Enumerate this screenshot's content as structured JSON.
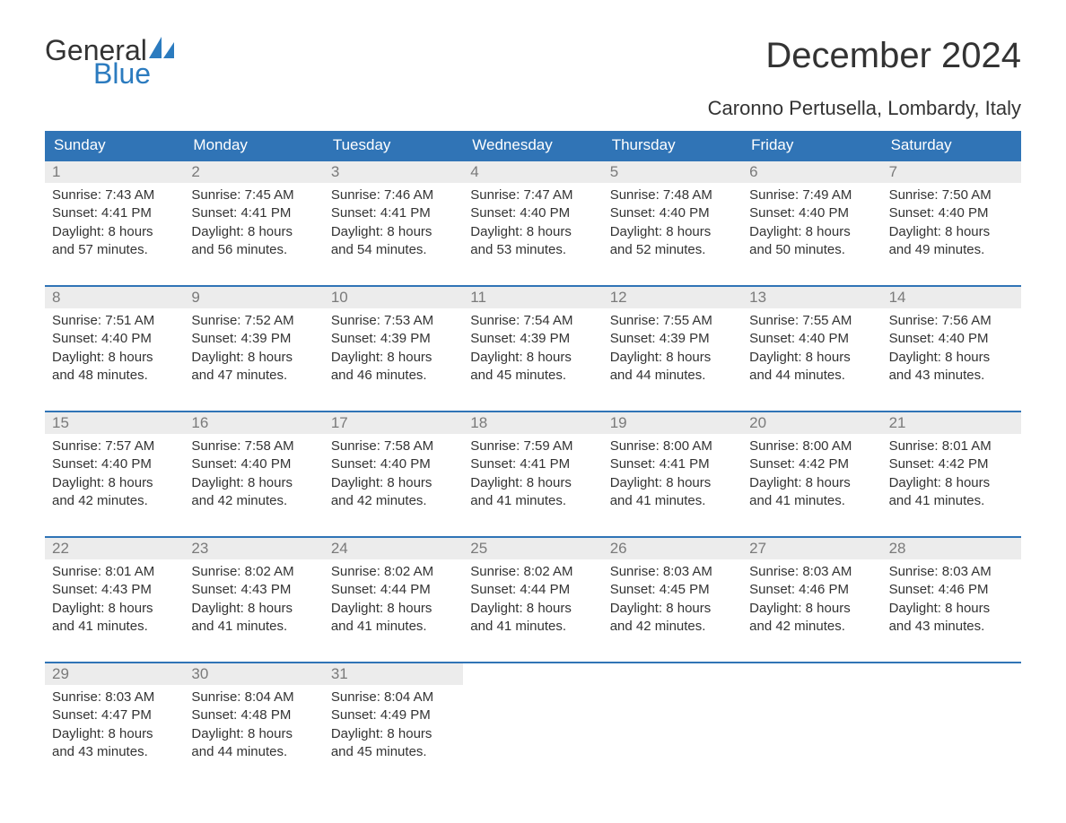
{
  "brand": {
    "word1": "General",
    "word2": "Blue",
    "word1_color": "#333333",
    "word2_color": "#2b7bbf",
    "sail_color": "#2b7bbf"
  },
  "title": "December 2024",
  "location": "Caronno Pertusella, Lombardy, Italy",
  "colors": {
    "header_bg": "#3074b6",
    "header_text": "#ffffff",
    "daynum_bg": "#ececec",
    "daynum_text": "#7a7a7a",
    "body_text": "#333333",
    "week_border": "#3074b6",
    "page_bg": "#ffffff"
  },
  "typography": {
    "title_fontsize": 40,
    "location_fontsize": 22,
    "dow_fontsize": 17,
    "daynum_fontsize": 17,
    "body_fontsize": 15,
    "font_family": "Arial"
  },
  "days_of_week": [
    "Sunday",
    "Monday",
    "Tuesday",
    "Wednesday",
    "Thursday",
    "Friday",
    "Saturday"
  ],
  "weeks": [
    [
      {
        "n": "1",
        "sunrise": "Sunrise: 7:43 AM",
        "sunset": "Sunset: 4:41 PM",
        "d1": "Daylight: 8 hours",
        "d2": "and 57 minutes."
      },
      {
        "n": "2",
        "sunrise": "Sunrise: 7:45 AM",
        "sunset": "Sunset: 4:41 PM",
        "d1": "Daylight: 8 hours",
        "d2": "and 56 minutes."
      },
      {
        "n": "3",
        "sunrise": "Sunrise: 7:46 AM",
        "sunset": "Sunset: 4:41 PM",
        "d1": "Daylight: 8 hours",
        "d2": "and 54 minutes."
      },
      {
        "n": "4",
        "sunrise": "Sunrise: 7:47 AM",
        "sunset": "Sunset: 4:40 PM",
        "d1": "Daylight: 8 hours",
        "d2": "and 53 minutes."
      },
      {
        "n": "5",
        "sunrise": "Sunrise: 7:48 AM",
        "sunset": "Sunset: 4:40 PM",
        "d1": "Daylight: 8 hours",
        "d2": "and 52 minutes."
      },
      {
        "n": "6",
        "sunrise": "Sunrise: 7:49 AM",
        "sunset": "Sunset: 4:40 PM",
        "d1": "Daylight: 8 hours",
        "d2": "and 50 minutes."
      },
      {
        "n": "7",
        "sunrise": "Sunrise: 7:50 AM",
        "sunset": "Sunset: 4:40 PM",
        "d1": "Daylight: 8 hours",
        "d2": "and 49 minutes."
      }
    ],
    [
      {
        "n": "8",
        "sunrise": "Sunrise: 7:51 AM",
        "sunset": "Sunset: 4:40 PM",
        "d1": "Daylight: 8 hours",
        "d2": "and 48 minutes."
      },
      {
        "n": "9",
        "sunrise": "Sunrise: 7:52 AM",
        "sunset": "Sunset: 4:39 PM",
        "d1": "Daylight: 8 hours",
        "d2": "and 47 minutes."
      },
      {
        "n": "10",
        "sunrise": "Sunrise: 7:53 AM",
        "sunset": "Sunset: 4:39 PM",
        "d1": "Daylight: 8 hours",
        "d2": "and 46 minutes."
      },
      {
        "n": "11",
        "sunrise": "Sunrise: 7:54 AM",
        "sunset": "Sunset: 4:39 PM",
        "d1": "Daylight: 8 hours",
        "d2": "and 45 minutes."
      },
      {
        "n": "12",
        "sunrise": "Sunrise: 7:55 AM",
        "sunset": "Sunset: 4:39 PM",
        "d1": "Daylight: 8 hours",
        "d2": "and 44 minutes."
      },
      {
        "n": "13",
        "sunrise": "Sunrise: 7:55 AM",
        "sunset": "Sunset: 4:40 PM",
        "d1": "Daylight: 8 hours",
        "d2": "and 44 minutes."
      },
      {
        "n": "14",
        "sunrise": "Sunrise: 7:56 AM",
        "sunset": "Sunset: 4:40 PM",
        "d1": "Daylight: 8 hours",
        "d2": "and 43 minutes."
      }
    ],
    [
      {
        "n": "15",
        "sunrise": "Sunrise: 7:57 AM",
        "sunset": "Sunset: 4:40 PM",
        "d1": "Daylight: 8 hours",
        "d2": "and 42 minutes."
      },
      {
        "n": "16",
        "sunrise": "Sunrise: 7:58 AM",
        "sunset": "Sunset: 4:40 PM",
        "d1": "Daylight: 8 hours",
        "d2": "and 42 minutes."
      },
      {
        "n": "17",
        "sunrise": "Sunrise: 7:58 AM",
        "sunset": "Sunset: 4:40 PM",
        "d1": "Daylight: 8 hours",
        "d2": "and 42 minutes."
      },
      {
        "n": "18",
        "sunrise": "Sunrise: 7:59 AM",
        "sunset": "Sunset: 4:41 PM",
        "d1": "Daylight: 8 hours",
        "d2": "and 41 minutes."
      },
      {
        "n": "19",
        "sunrise": "Sunrise: 8:00 AM",
        "sunset": "Sunset: 4:41 PM",
        "d1": "Daylight: 8 hours",
        "d2": "and 41 minutes."
      },
      {
        "n": "20",
        "sunrise": "Sunrise: 8:00 AM",
        "sunset": "Sunset: 4:42 PM",
        "d1": "Daylight: 8 hours",
        "d2": "and 41 minutes."
      },
      {
        "n": "21",
        "sunrise": "Sunrise: 8:01 AM",
        "sunset": "Sunset: 4:42 PM",
        "d1": "Daylight: 8 hours",
        "d2": "and 41 minutes."
      }
    ],
    [
      {
        "n": "22",
        "sunrise": "Sunrise: 8:01 AM",
        "sunset": "Sunset: 4:43 PM",
        "d1": "Daylight: 8 hours",
        "d2": "and 41 minutes."
      },
      {
        "n": "23",
        "sunrise": "Sunrise: 8:02 AM",
        "sunset": "Sunset: 4:43 PM",
        "d1": "Daylight: 8 hours",
        "d2": "and 41 minutes."
      },
      {
        "n": "24",
        "sunrise": "Sunrise: 8:02 AM",
        "sunset": "Sunset: 4:44 PM",
        "d1": "Daylight: 8 hours",
        "d2": "and 41 minutes."
      },
      {
        "n": "25",
        "sunrise": "Sunrise: 8:02 AM",
        "sunset": "Sunset: 4:44 PM",
        "d1": "Daylight: 8 hours",
        "d2": "and 41 minutes."
      },
      {
        "n": "26",
        "sunrise": "Sunrise: 8:03 AM",
        "sunset": "Sunset: 4:45 PM",
        "d1": "Daylight: 8 hours",
        "d2": "and 42 minutes."
      },
      {
        "n": "27",
        "sunrise": "Sunrise: 8:03 AM",
        "sunset": "Sunset: 4:46 PM",
        "d1": "Daylight: 8 hours",
        "d2": "and 42 minutes."
      },
      {
        "n": "28",
        "sunrise": "Sunrise: 8:03 AM",
        "sunset": "Sunset: 4:46 PM",
        "d1": "Daylight: 8 hours",
        "d2": "and 43 minutes."
      }
    ],
    [
      {
        "n": "29",
        "sunrise": "Sunrise: 8:03 AM",
        "sunset": "Sunset: 4:47 PM",
        "d1": "Daylight: 8 hours",
        "d2": "and 43 minutes."
      },
      {
        "n": "30",
        "sunrise": "Sunrise: 8:04 AM",
        "sunset": "Sunset: 4:48 PM",
        "d1": "Daylight: 8 hours",
        "d2": "and 44 minutes."
      },
      {
        "n": "31",
        "sunrise": "Sunrise: 8:04 AM",
        "sunset": "Sunset: 4:49 PM",
        "d1": "Daylight: 8 hours",
        "d2": "and 45 minutes."
      },
      {
        "empty": true
      },
      {
        "empty": true
      },
      {
        "empty": true
      },
      {
        "empty": true
      }
    ]
  ]
}
